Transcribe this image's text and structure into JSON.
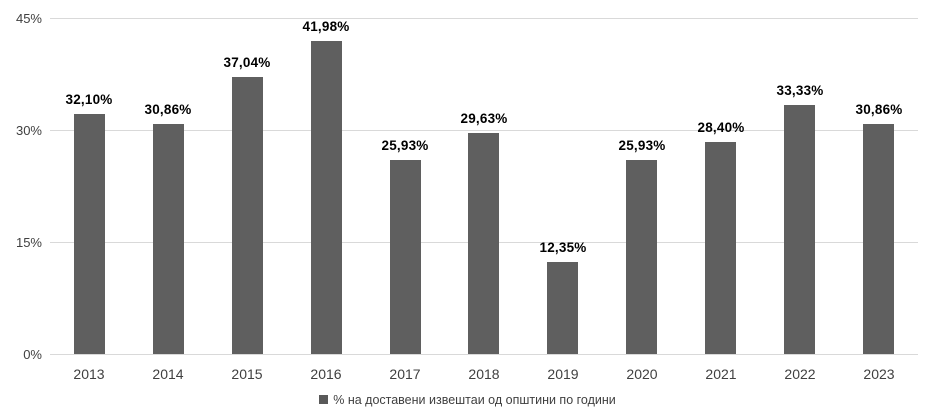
{
  "chart_data": {
    "type": "bar",
    "title": "",
    "categories": [
      "2013",
      "2014",
      "2015",
      "2016",
      "2017",
      "2018",
      "2019",
      "2020",
      "2021",
      "2022",
      "2023"
    ],
    "values": [
      32.1,
      30.86,
      37.04,
      41.98,
      25.93,
      29.63,
      12.35,
      25.93,
      28.4,
      33.33,
      30.86
    ],
    "value_labels": [
      "32,10%",
      "30,86%",
      "37,04%",
      "41,98%",
      "25,93%",
      "29,63%",
      "12,35%",
      "25,93%",
      "28,40%",
      "33,33%",
      "30,86%"
    ],
    "xlabel": "",
    "ylabel": "",
    "ylim": [
      0,
      45
    ],
    "y_ticks": [
      {
        "label": "0%",
        "value": 0
      },
      {
        "label": "15%",
        "value": 15
      },
      {
        "label": "30%",
        "value": 30
      },
      {
        "label": "45%",
        "value": 45
      }
    ],
    "grid": true,
    "legend_position": "bottom-center",
    "legend": "% на доставени извештаи од општини по години",
    "colors": {
      "bar": "#5f5f5f",
      "gridline": "#d9d9d9",
      "value_label": "#000000",
      "tick_label": "#404040",
      "legend_swatch": "#595959",
      "background": "#ffffff"
    }
  }
}
